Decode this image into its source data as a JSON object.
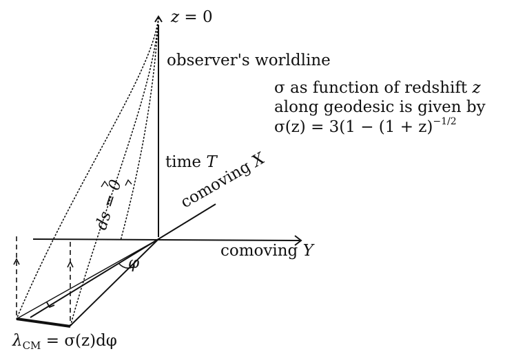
{
  "diagram": {
    "z0_label": {
      "var": "z",
      "eq": " = 0"
    },
    "worldline_label": "observer's worldline",
    "caption": {
      "line1_text": "σ as function of redshift ",
      "line1_var": "z",
      "line2": "along geodesic is given by",
      "line3_lhs": "σ(z) = 3(1 − (1 + z)",
      "line3_exp": "−1/2"
    },
    "time_label": {
      "text": "time ",
      "var": "T"
    },
    "comoving_x": {
      "text": "comoving ",
      "var": "X"
    },
    "comoving_y": {
      "text": "comoving ",
      "var": "Y"
    },
    "null_geodesic_label": "ds = 0",
    "angle_symbol": "φ",
    "lambda_label": {
      "lhs": "λ",
      "sub": "CM",
      "rhs": " = σ(z)dφ"
    },
    "colors": {
      "ink": "#111111",
      "background": "#ffffff"
    }
  }
}
